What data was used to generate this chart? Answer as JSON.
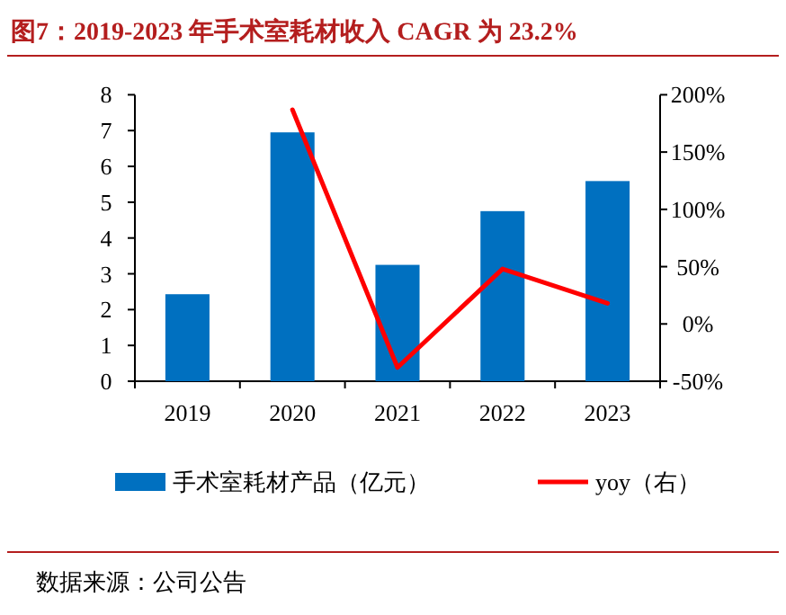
{
  "chart_data": {
    "type": "bar",
    "title": "图7：2019-2023 年手术室耗材收入 CAGR 为 23.2%",
    "categories": [
      "2019",
      "2020",
      "2021",
      "2022",
      "2023"
    ],
    "series": [
      {
        "name": "手术室耗材产品（亿元）",
        "color": "#0070c0",
        "values": [
          2.43,
          6.95,
          3.25,
          4.75,
          5.59
        ]
      },
      {
        "name": "yoy（右）",
        "type": "line",
        "axis": "y2",
        "color": "#ff0000",
        "values": [
          null,
          187,
          -38,
          48,
          18
        ]
      }
    ],
    "ylim": [
      0,
      8
    ],
    "yticks": [
      0,
      1,
      2,
      3,
      4,
      5,
      6,
      7,
      8
    ],
    "y2lim": [
      -50,
      200
    ],
    "y2ticks": [
      {
        "value": -50,
        "label": "-50%"
      },
      {
        "value": 0,
        "label": "0%"
      },
      {
        "value": 50,
        "label": "50%"
      },
      {
        "value": 100,
        "label": "100%"
      },
      {
        "value": 150,
        "label": "150%"
      },
      {
        "value": 200,
        "label": "200%"
      }
    ],
    "legend": "bottom",
    "annotations": [
      "数据来源：公司公告"
    ]
  }
}
